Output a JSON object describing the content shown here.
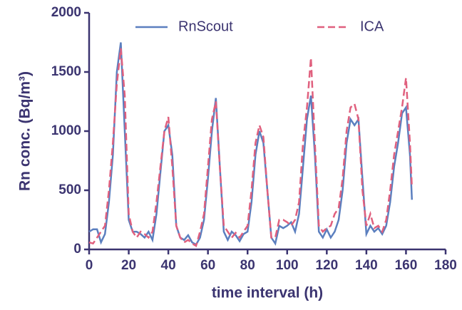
{
  "chart_data": {
    "type": "line",
    "xlabel": "time interval (h)",
    "ylabel": "Rn conc. (Bq/m³)",
    "x": [
      0,
      2,
      4,
      6,
      8,
      10,
      12,
      14,
      16,
      18,
      20,
      22,
      24,
      26,
      28,
      30,
      32,
      34,
      36,
      38,
      40,
      42,
      44,
      46,
      48,
      50,
      52,
      54,
      56,
      58,
      60,
      62,
      64,
      66,
      68,
      70,
      72,
      74,
      76,
      78,
      80,
      82,
      84,
      86,
      88,
      90,
      92,
      94,
      96,
      98,
      100,
      102,
      104,
      106,
      108,
      110,
      112,
      114,
      116,
      118,
      120,
      122,
      124,
      126,
      128,
      130,
      132,
      134,
      136,
      138,
      140,
      142,
      144,
      146,
      148,
      150,
      152,
      154,
      156,
      158,
      160,
      162,
      163
    ],
    "series": [
      {
        "name": "RnScout",
        "color": "#5b7fbf",
        "dash": false,
        "values": [
          150,
          170,
          170,
          60,
          130,
          400,
          800,
          1500,
          1750,
          1000,
          250,
          150,
          150,
          130,
          100,
          150,
          80,
          300,
          650,
          1000,
          1050,
          800,
          200,
          100,
          80,
          120,
          60,
          40,
          100,
          250,
          600,
          1000,
          1280,
          700,
          150,
          80,
          150,
          120,
          70,
          130,
          150,
          400,
          800,
          1000,
          900,
          500,
          100,
          50,
          200,
          180,
          200,
          230,
          150,
          300,
          700,
          1100,
          1300,
          800,
          150,
          100,
          170,
          100,
          150,
          250,
          500,
          900,
          1100,
          1050,
          1100,
          600,
          130,
          200,
          150,
          180,
          130,
          200,
          400,
          700,
          900,
          1150,
          1200,
          800,
          420
        ]
      },
      {
        "name": "ICA",
        "color": "#e0607e",
        "dash": true,
        "values": [
          60,
          50,
          100,
          150,
          200,
          500,
          900,
          1400,
          1700,
          1300,
          300,
          150,
          100,
          150,
          130,
          100,
          150,
          400,
          700,
          1000,
          1120,
          700,
          200,
          100,
          60,
          80,
          50,
          30,
          150,
          300,
          700,
          1100,
          1250,
          700,
          200,
          150,
          100,
          140,
          100,
          150,
          200,
          500,
          900,
          1050,
          950,
          500,
          100,
          100,
          250,
          250,
          230,
          200,
          250,
          400,
          900,
          1200,
          1620,
          900,
          200,
          150,
          180,
          200,
          300,
          350,
          600,
          1000,
          1200,
          1230,
          1100,
          500,
          200,
          300,
          180,
          200,
          150,
          250,
          500,
          800,
          1000,
          1200,
          1450,
          900,
          520
        ]
      }
    ],
    "xlim": [
      0,
      180
    ],
    "xticks": [
      0,
      20,
      40,
      60,
      80,
      100,
      120,
      140,
      160,
      180
    ],
    "ylim": [
      0,
      2000
    ],
    "yticks": [
      0,
      500,
      1000,
      1500,
      2000
    ]
  }
}
